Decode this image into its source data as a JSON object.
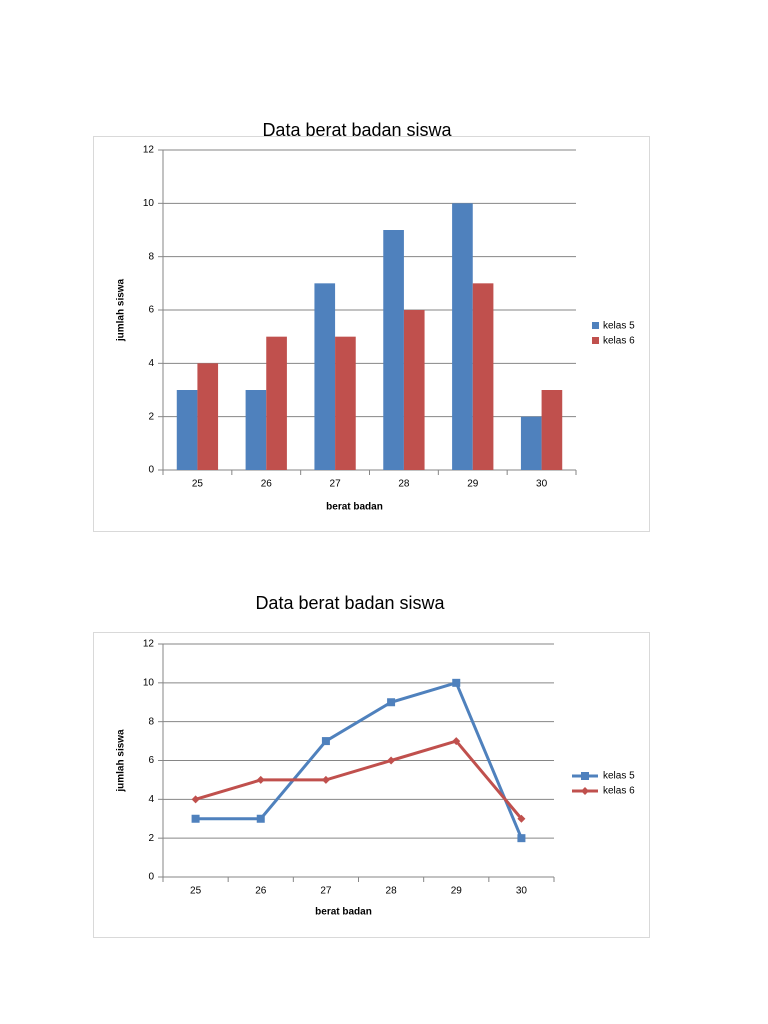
{
  "chart_data": [
    {
      "type": "bar",
      "title": "Data berat badan siswa",
      "x_label": "berat badan",
      "y_label": "jumlah siswa",
      "categories": [
        "25",
        "26",
        "27",
        "28",
        "29",
        "30"
      ],
      "series": [
        {
          "name": "kelas 5",
          "color": "#4f81bd",
          "values": [
            3,
            3,
            7,
            9,
            10,
            2
          ]
        },
        {
          "name": "kelas 6",
          "color": "#c0504d",
          "values": [
            4,
            5,
            5,
            6,
            7,
            3
          ]
        }
      ],
      "ylim": [
        0,
        12
      ],
      "yticks": [
        0,
        2,
        4,
        6,
        8,
        10,
        12
      ],
      "grid": true,
      "legend": "right"
    },
    {
      "type": "line",
      "title": "Data berat badan siswa",
      "x_label": "berat badan",
      "y_label": "jumlah siswa",
      "categories": [
        "25",
        "26",
        "27",
        "28",
        "29",
        "30"
      ],
      "series": [
        {
          "name": "kelas 5",
          "color": "#4f81bd",
          "marker": "square",
          "values": [
            3,
            3,
            7,
            9,
            10,
            2
          ]
        },
        {
          "name": "kelas 6",
          "color": "#c0504d",
          "marker": "diamond",
          "values": [
            4,
            5,
            5,
            6,
            7,
            3
          ]
        }
      ],
      "ylim": [
        0,
        12
      ],
      "yticks": [
        0,
        2,
        4,
        6,
        8,
        10,
        12
      ],
      "grid": true,
      "legend": "right"
    }
  ]
}
